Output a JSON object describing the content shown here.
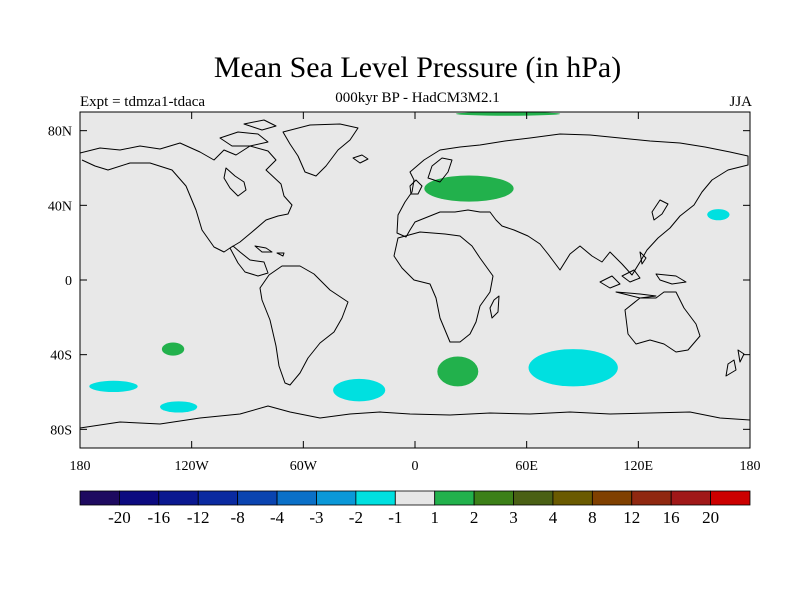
{
  "title": "Mean Sea Level Pressure (in hPa)",
  "subtitle": "000kyr BP - HadCM3M2.1",
  "experiment": "Expt = tdmza1-tdaca",
  "season": "JJA",
  "map": {
    "projection": "cylindrical equidistant",
    "lon_range": [
      -180,
      180
    ],
    "lat_range": [
      -90,
      90
    ],
    "ocean_color": "#e8e8e8",
    "coastline_color": "#000000",
    "lon_ticks": [
      {
        "lon": -180,
        "label": "180"
      },
      {
        "lon": -120,
        "label": "120W"
      },
      {
        "lon": -60,
        "label": "60W"
      },
      {
        "lon": 0,
        "label": "0"
      },
      {
        "lon": 60,
        "label": "60E"
      },
      {
        "lon": 120,
        "label": "120E"
      },
      {
        "lon": 180,
        "label": "180"
      }
    ],
    "lat_ticks": [
      {
        "lat": 80,
        "label": "80N"
      },
      {
        "lat": 40,
        "label": "40N"
      },
      {
        "lat": 0,
        "label": "0"
      },
      {
        "lat": -40,
        "label": "40S"
      },
      {
        "lat": -80,
        "label": "80S"
      }
    ]
  },
  "anomaly_regions": [
    {
      "name": "europe-high",
      "sign": "positive",
      "range": "1 to 2",
      "color": "#22b14c",
      "lon": 29,
      "lat": 49,
      "lon_half": 24,
      "lat_half": 7
    },
    {
      "name": "arctic-high",
      "sign": "positive",
      "range": "1 to 2",
      "color": "#22b14c",
      "lon": 50,
      "lat": 89,
      "lon_half": 28,
      "lat_half": 1
    },
    {
      "name": "south-atlantic-high",
      "sign": "positive",
      "range": "1 to 2",
      "color": "#22b14c",
      "lon": 23,
      "lat": -49,
      "lon_half": 11,
      "lat_half": 8
    },
    {
      "name": "south-pacific-high",
      "sign": "positive",
      "range": "1 to 2",
      "color": "#22b14c",
      "lon": -130,
      "lat": -37,
      "lon_half": 6,
      "lat_half": 3.5
    },
    {
      "name": "indian-ocean-low",
      "sign": "negative",
      "range": "-2 to -1",
      "color": "#00e0e0",
      "lon": 85,
      "lat": -47,
      "lon_half": 24,
      "lat_half": 10
    },
    {
      "name": "south-atlantic-low",
      "sign": "negative",
      "range": "-2 to -1",
      "color": "#00e0e0",
      "lon": -30,
      "lat": -59,
      "lon_half": 14,
      "lat_half": 6
    },
    {
      "name": "south-pacific-low-1",
      "sign": "negative",
      "range": "-2 to -1",
      "color": "#00e0e0",
      "lon": -162,
      "lat": -57,
      "lon_half": 13,
      "lat_half": 3
    },
    {
      "name": "south-pacific-low-2",
      "sign": "negative",
      "range": "-2 to -1",
      "color": "#00e0e0",
      "lon": -127,
      "lat": -68,
      "lon_half": 10,
      "lat_half": 3
    },
    {
      "name": "north-pacific-low",
      "sign": "negative",
      "range": "-2 to -1",
      "color": "#00e0e0",
      "lon": 163,
      "lat": 35,
      "lon_half": 6,
      "lat_half": 3
    }
  ],
  "colorbar": {
    "colors": [
      "#1e0a60",
      "#0c0a80",
      "#0a1890",
      "#0a2aa0",
      "#0a44b0",
      "#0a70c8",
      "#0a98d8",
      "#00e0e0",
      "#e6e6e6",
      "#22b14c",
      "#3c8018",
      "#4a6014",
      "#6a5a00",
      "#804000",
      "#902810",
      "#a01818",
      "#cc0000"
    ],
    "labels": [
      "-20",
      "-16",
      "-12",
      "-8",
      "-4",
      "-3",
      "-2",
      "-1",
      "1",
      "2",
      "3",
      "4",
      "8",
      "12",
      "16",
      "20"
    ]
  }
}
